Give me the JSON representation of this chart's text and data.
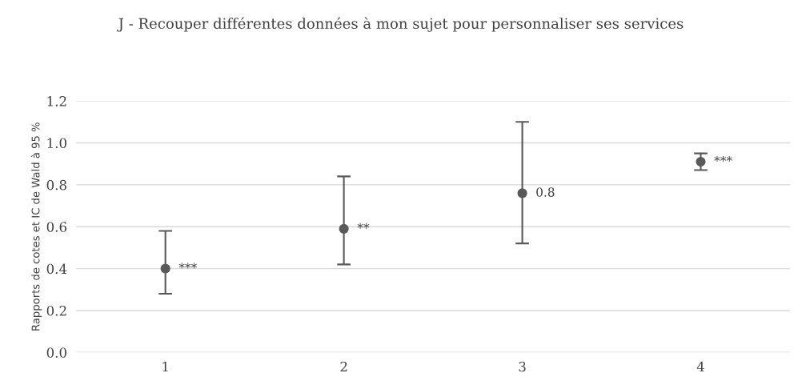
{
  "chart_data": {
    "type": "scatter",
    "title": "J - Recouper différentes données à mon sujet pour personnaliser ses services",
    "ylabel": "Rapports de cotes et IC de Wald à 95 %",
    "categories": [
      "1",
      "2",
      "3",
      "4"
    ],
    "series": [
      {
        "color": "#595959",
        "values": [
          0.4,
          0.59,
          0.76,
          0.91
        ],
        "errors": [
          [
            0.28,
            0.58
          ],
          [
            0.42,
            0.84
          ],
          [
            0.52,
            1.1
          ],
          [
            0.87,
            0.95
          ]
        ],
        "value_labels": [
          "***",
          "**",
          "0.8",
          "***"
        ]
      }
    ],
    "ylim": [
      0,
      1.2
    ],
    "yticks": [
      {
        "value": 0,
        "label": "0.0"
      },
      {
        "value": 0.2,
        "label": "0.2"
      },
      {
        "value": 0.4,
        "label": "0.4"
      },
      {
        "value": 0.6,
        "label": "0.6"
      },
      {
        "value": 0.8,
        "label": "0.8"
      },
      {
        "value": 1.0,
        "label": "1.0"
      },
      {
        "value": 1.2,
        "label": "1.2"
      }
    ],
    "grid": "y",
    "marker": "circle"
  }
}
